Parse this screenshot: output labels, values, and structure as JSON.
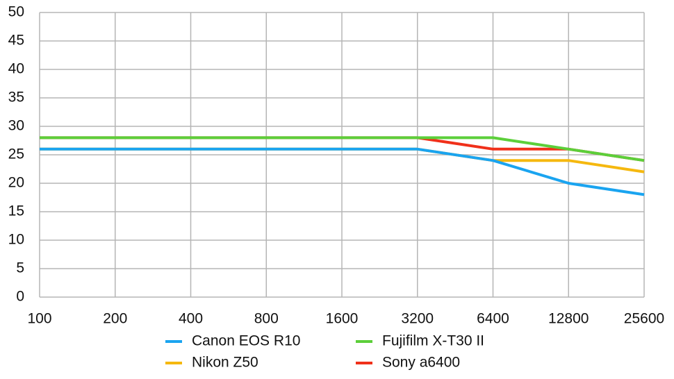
{
  "chart_data": {
    "type": "line",
    "categories": [
      "100",
      "200",
      "400",
      "800",
      "1600",
      "3200",
      "6400",
      "12800",
      "25600"
    ],
    "series": [
      {
        "name": "Canon EOS R10",
        "color": "#1aa4f0",
        "values": [
          26,
          26,
          26,
          26,
          26,
          26,
          24,
          20,
          18
        ]
      },
      {
        "name": "Fujifilm X-T30 II",
        "color": "#5ccf3a",
        "values": [
          28,
          28,
          28,
          28,
          28,
          28,
          28,
          26,
          24
        ]
      },
      {
        "name": "Nikon Z50",
        "color": "#f5b80f",
        "values": [
          26,
          26,
          26,
          26,
          26,
          26,
          24,
          24,
          22
        ]
      },
      {
        "name": "Sony a6400",
        "color": "#f0301a",
        "values": [
          28,
          28,
          28,
          28,
          28,
          28,
          26,
          26,
          24
        ]
      }
    ],
    "ylim": [
      0,
      50
    ],
    "yticks": [
      0,
      5,
      10,
      15,
      20,
      25,
      30,
      35,
      40,
      45,
      50
    ],
    "grid": true
  }
}
